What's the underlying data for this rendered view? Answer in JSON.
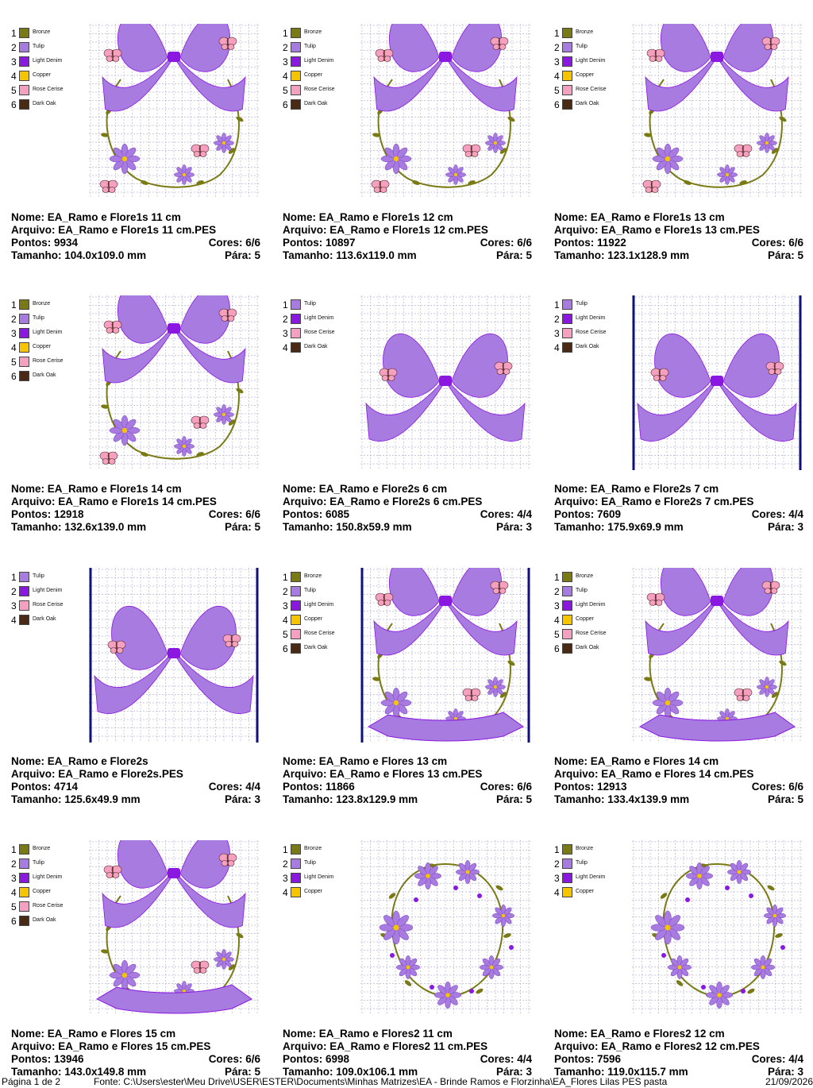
{
  "thread_colors": {
    "Bronze": "#7a7a14",
    "Tulip": "#a87be0",
    "Light Denim": "#8a18e0",
    "Copper": "#f7c400",
    "Rose Cerise": "#f5a0c0",
    "Dark Oak": "#4a2a14"
  },
  "labels": {
    "nome": "Nome:",
    "arquivo": "Arquivo:",
    "pontos": "Pontos:",
    "cores": "Cores:",
    "tamanho": "Tamanho:",
    "para": "Pára:"
  },
  "designs": [
    {
      "motif": "bow-wreath",
      "frame": false,
      "legend": [
        {
          "num": "1",
          "name": "Bronze"
        },
        {
          "num": "2",
          "name": "Tulip"
        },
        {
          "num": "3",
          "name": "Light Denim"
        },
        {
          "num": "4",
          "name": "Copper"
        },
        {
          "num": "5",
          "name": "Rose Cerise"
        },
        {
          "num": "6",
          "name": "Dark Oak"
        }
      ],
      "nome": "EA_Ramo e Flore1s 11 cm",
      "arquivo": "EA_Ramo e Flore1s 11 cm.PES",
      "pontos": "9934",
      "cores": "6/6",
      "tamanho": "104.0x109.0 mm",
      "para": "5"
    },
    {
      "motif": "bow-wreath",
      "frame": false,
      "legend": [
        {
          "num": "1",
          "name": "Bronze"
        },
        {
          "num": "2",
          "name": "Tulip"
        },
        {
          "num": "3",
          "name": "Light Denim"
        },
        {
          "num": "4",
          "name": "Copper"
        },
        {
          "num": "5",
          "name": "Rose Cerise"
        },
        {
          "num": "6",
          "name": "Dark Oak"
        }
      ],
      "nome": "EA_Ramo e Flore1s 12 cm",
      "arquivo": "EA_Ramo e Flore1s 12 cm.PES",
      "pontos": "10897",
      "cores": "6/6",
      "tamanho": "113.6x119.0 mm",
      "para": "5"
    },
    {
      "motif": "bow-wreath",
      "frame": false,
      "legend": [
        {
          "num": "1",
          "name": "Bronze"
        },
        {
          "num": "2",
          "name": "Tulip"
        },
        {
          "num": "3",
          "name": "Light Denim"
        },
        {
          "num": "4",
          "name": "Copper"
        },
        {
          "num": "5",
          "name": "Rose Cerise"
        },
        {
          "num": "6",
          "name": "Dark Oak"
        }
      ],
      "nome": "EA_Ramo e Flore1s 13 cm",
      "arquivo": "EA_Ramo e Flore1s 13 cm.PES",
      "pontos": "11922",
      "cores": "6/6",
      "tamanho": "123.1x128.9 mm",
      "para": "5"
    },
    {
      "motif": "bow-wreath",
      "frame": false,
      "legend": [
        {
          "num": "1",
          "name": "Bronze"
        },
        {
          "num": "2",
          "name": "Tulip"
        },
        {
          "num": "3",
          "name": "Light Denim"
        },
        {
          "num": "4",
          "name": "Copper"
        },
        {
          "num": "5",
          "name": "Rose Cerise"
        },
        {
          "num": "6",
          "name": "Dark Oak"
        }
      ],
      "nome": "EA_Ramo e Flore1s 14 cm",
      "arquivo": "EA_Ramo e Flore1s 14 cm.PES",
      "pontos": "12918",
      "cores": "6/6",
      "tamanho": "132.6x139.0 mm",
      "para": "5"
    },
    {
      "motif": "bow",
      "frame": false,
      "legend": [
        {
          "num": "1",
          "name": "Tulip"
        },
        {
          "num": "2",
          "name": "Light Denim"
        },
        {
          "num": "3",
          "name": "Rose Cerise"
        },
        {
          "num": "4",
          "name": "Dark Oak"
        }
      ],
      "nome": "EA_Ramo e Flore2s 6 cm",
      "arquivo": "EA_Ramo e Flore2s 6 cm.PES",
      "pontos": "6085",
      "cores": "4/4",
      "tamanho": "150.8x59.9 mm",
      "para": "3"
    },
    {
      "motif": "bow",
      "frame": true,
      "legend": [
        {
          "num": "1",
          "name": "Tulip"
        },
        {
          "num": "2",
          "name": "Light Denim"
        },
        {
          "num": "3",
          "name": "Rose Cerise"
        },
        {
          "num": "4",
          "name": "Dark Oak"
        }
      ],
      "nome": "EA_Ramo e Flore2s 7 cm",
      "arquivo": "EA_Ramo e Flore2s 7 cm.PES",
      "pontos": "7609",
      "cores": "4/4",
      "tamanho": "175.9x69.9 mm",
      "para": "3"
    },
    {
      "motif": "bow",
      "frame": true,
      "legend": [
        {
          "num": "1",
          "name": "Tulip"
        },
        {
          "num": "2",
          "name": "Light Denim"
        },
        {
          "num": "3",
          "name": "Rose Cerise"
        },
        {
          "num": "4",
          "name": "Dark Oak"
        }
      ],
      "nome": "EA_Ramo e Flore2s",
      "arquivo": "EA_Ramo e Flore2s.PES",
      "pontos": "4714",
      "cores": "4/4",
      "tamanho": "125.6x49.9 mm",
      "para": "3"
    },
    {
      "motif": "bow-banner",
      "frame": true,
      "legend": [
        {
          "num": "1",
          "name": "Bronze"
        },
        {
          "num": "2",
          "name": "Tulip"
        },
        {
          "num": "3",
          "name": "Light Denim"
        },
        {
          "num": "4",
          "name": "Copper"
        },
        {
          "num": "5",
          "name": "Rose Cerise"
        },
        {
          "num": "6",
          "name": "Dark Oak"
        }
      ],
      "nome": "EA_Ramo e Flores 13 cm",
      "arquivo": "EA_Ramo e Flores 13 cm.PES",
      "pontos": "11866",
      "cores": "6/6",
      "tamanho": "123.8x129.9 mm",
      "para": "5"
    },
    {
      "motif": "bow-banner",
      "frame": false,
      "legend": [
        {
          "num": "1",
          "name": "Bronze"
        },
        {
          "num": "2",
          "name": "Tulip"
        },
        {
          "num": "3",
          "name": "Light Denim"
        },
        {
          "num": "4",
          "name": "Copper"
        },
        {
          "num": "5",
          "name": "Rose Cerise"
        },
        {
          "num": "6",
          "name": "Dark Oak"
        }
      ],
      "nome": "EA_Ramo e Flores 14 cm",
      "arquivo": "EA_Ramo e Flores 14 cm.PES",
      "pontos": "12913",
      "cores": "6/6",
      "tamanho": "133.4x139.9 mm",
      "para": "5"
    },
    {
      "motif": "bow-banner",
      "frame": false,
      "legend": [
        {
          "num": "1",
          "name": "Bronze"
        },
        {
          "num": "2",
          "name": "Tulip"
        },
        {
          "num": "3",
          "name": "Light Denim"
        },
        {
          "num": "4",
          "name": "Copper"
        },
        {
          "num": "5",
          "name": "Rose Cerise"
        },
        {
          "num": "6",
          "name": "Dark Oak"
        }
      ],
      "nome": "EA_Ramo e Flores 15 cm",
      "arquivo": "EA_Ramo e Flores 15 cm.PES",
      "pontos": "13946",
      "cores": "6/6",
      "tamanho": "143.0x149.8 mm",
      "para": "5"
    },
    {
      "motif": "floral-ring",
      "frame": false,
      "legend": [
        {
          "num": "1",
          "name": "Bronze"
        },
        {
          "num": "2",
          "name": "Tulip"
        },
        {
          "num": "3",
          "name": "Light Denim"
        },
        {
          "num": "4",
          "name": "Copper"
        }
      ],
      "nome": "EA_Ramo e Flores2 11 cm",
      "arquivo": "EA_Ramo e Flores2 11 cm.PES",
      "pontos": "6998",
      "cores": "4/4",
      "tamanho": "109.0x106.1 mm",
      "para": "3"
    },
    {
      "motif": "floral-ring",
      "frame": false,
      "legend": [
        {
          "num": "1",
          "name": "Bronze"
        },
        {
          "num": "2",
          "name": "Tulip"
        },
        {
          "num": "3",
          "name": "Light Denim"
        },
        {
          "num": "4",
          "name": "Copper"
        }
      ],
      "nome": "EA_Ramo e Flores2 12 cm",
      "arquivo": "EA_Ramo e Flores2 12 cm.PES",
      "pontos": "7596",
      "cores": "4/4",
      "tamanho": "119.0x115.7 mm",
      "para": "3"
    }
  ],
  "footer": {
    "page": "Página 1 de 2",
    "source": "Fonte: C:\\Users\\ester\\Meu Drive\\USER\\ESTER\\Documents\\Minhas Matrizes\\EA - Brinde Ramos e Florzinha\\EA_Flores Lilas PES pasta",
    "date": "21/09/2026"
  }
}
